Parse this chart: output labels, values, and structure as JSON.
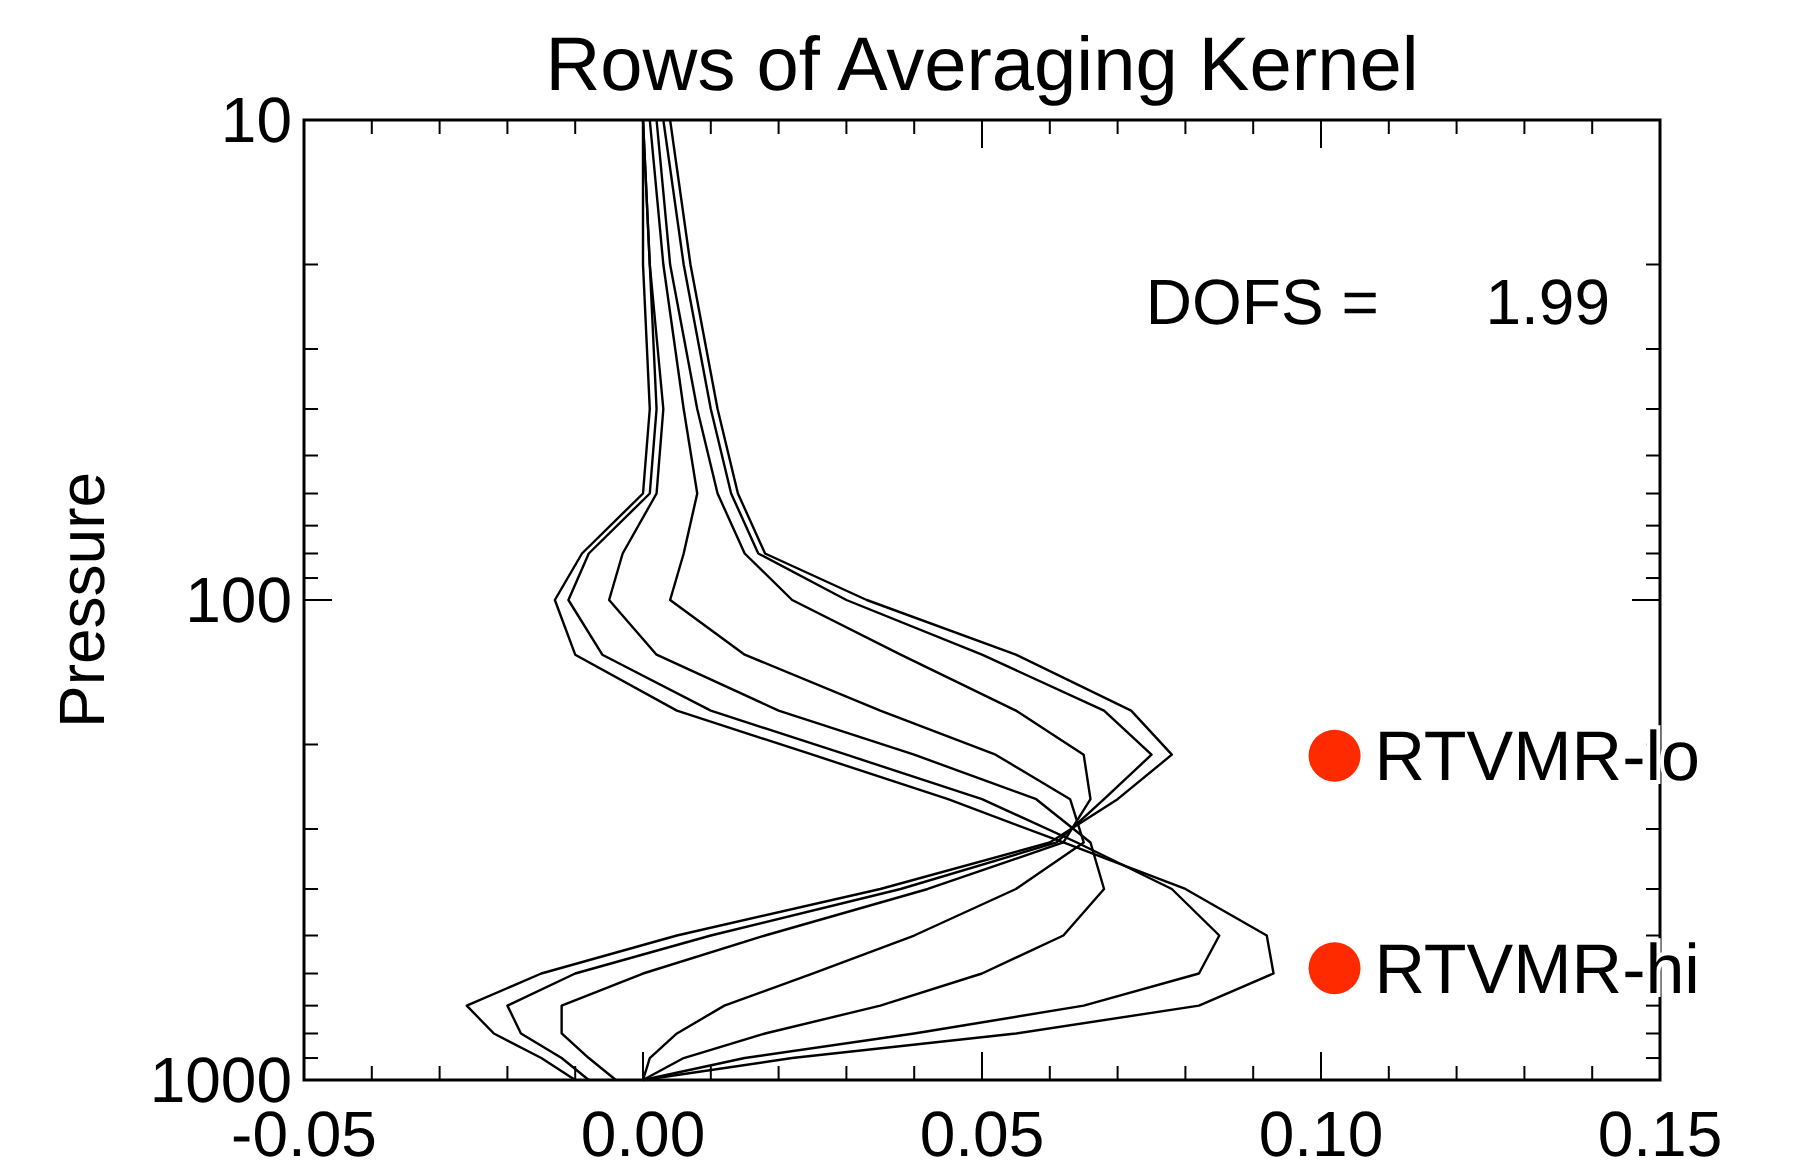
{
  "chart_data": {
    "type": "line",
    "title": "Rows of Averaging Kernel",
    "ylabel": "Pressure",
    "log": "y",
    "grid": false,
    "marker": "none",
    "line_style": "solid",
    "xlim": [
      -0.05,
      0.15
    ],
    "xticks": [
      {
        "value": -0.05,
        "label": "-0.05"
      },
      {
        "value": -0.04,
        "label": null
      },
      {
        "value": -0.03,
        "label": null
      },
      {
        "value": -0.02,
        "label": null
      },
      {
        "value": -0.01,
        "label": null
      },
      {
        "value": 0,
        "label": "0.00"
      },
      {
        "value": 0.01,
        "label": null
      },
      {
        "value": 0.02,
        "label": null
      },
      {
        "value": 0.03,
        "label": null
      },
      {
        "value": 0.04,
        "label": null
      },
      {
        "value": 0.05,
        "label": "0.05"
      },
      {
        "value": 0.06,
        "label": null
      },
      {
        "value": 0.07,
        "label": null
      },
      {
        "value": 0.08,
        "label": null
      },
      {
        "value": 0.09,
        "label": null
      },
      {
        "value": 0.1,
        "label": "0.10"
      },
      {
        "value": 0.11,
        "label": null
      },
      {
        "value": 0.12,
        "label": null
      },
      {
        "value": 0.13,
        "label": null
      },
      {
        "value": 0.14,
        "label": null
      },
      {
        "value": 0.15,
        "label": "0.15"
      }
    ],
    "ylim": [
      1000,
      10
    ],
    "yticks": [
      10,
      {
        "value": 20,
        "label": null
      },
      {
        "value": 30,
        "label": null
      },
      {
        "value": 40,
        "label": null
      },
      {
        "value": 50,
        "label": null
      },
      {
        "value": 60,
        "label": null
      },
      {
        "value": 70,
        "label": null
      },
      {
        "value": 80,
        "label": null
      },
      {
        "value": 90,
        "label": null
      },
      100,
      {
        "value": 200,
        "label": null
      },
      {
        "value": 300,
        "label": null
      },
      {
        "value": 400,
        "label": null
      },
      {
        "value": 500,
        "label": null
      },
      {
        "value": 600,
        "label": null
      },
      {
        "value": 700,
        "label": null
      },
      {
        "value": 800,
        "label": null
      },
      {
        "value": 900,
        "label": null
      },
      1000
    ],
    "annotations": [
      "DOFS =      1.99",
      {
        "text": "RTVMR-lo",
        "x": 0.102,
        "y": 211
      },
      {
        "text": "RTVMR-hi",
        "x": 0.102,
        "y": 585
      }
    ],
    "series": [
      {
        "color": "#000000",
        "x": [
          0.004,
          0.007,
          0.011,
          0.014,
          0.018,
          0.033,
          0.055,
          0.072,
          0.078,
          0.07,
          0.06,
          0.035,
          0.005,
          -0.015,
          -0.026,
          -0.022,
          -0.015,
          -0.01
        ],
        "values": [
          10,
          20,
          40,
          60,
          80,
          100,
          130,
          170,
          210,
          260,
          320,
          400,
          500,
          600,
          700,
          800,
          900,
          1000
        ]
      },
      {
        "color": "#000000",
        "x": [
          0.003,
          0.006,
          0.01,
          0.013,
          0.017,
          0.03,
          0.05,
          0.068,
          0.075,
          0.068,
          0.061,
          0.038,
          0.01,
          -0.01,
          -0.02,
          -0.018,
          -0.012,
          -0.008
        ],
        "values": [
          10,
          20,
          40,
          60,
          80,
          100,
          130,
          170,
          210,
          260,
          320,
          400,
          500,
          600,
          700,
          800,
          900,
          1000
        ]
      },
      {
        "color": "#000000",
        "x": [
          0.002,
          0.004,
          0.008,
          0.011,
          0.015,
          0.022,
          0.038,
          0.055,
          0.065,
          0.066,
          0.062,
          0.042,
          0.018,
          0.0,
          -0.012,
          -0.012,
          -0.008,
          -0.004
        ],
        "values": [
          10,
          20,
          40,
          60,
          80,
          100,
          130,
          170,
          210,
          260,
          320,
          400,
          500,
          600,
          700,
          800,
          900,
          1000
        ]
      },
      {
        "color": "#000000",
        "x": [
          0.001,
          0.003,
          0.006,
          0.008,
          0.006,
          0.004,
          0.015,
          0.035,
          0.052,
          0.063,
          0.065,
          0.055,
          0.04,
          0.025,
          0.012,
          0.005,
          0.001,
          0.0
        ],
        "values": [
          10,
          20,
          40,
          60,
          80,
          100,
          130,
          170,
          210,
          260,
          320,
          400,
          500,
          600,
          700,
          800,
          900,
          1000
        ]
      },
      {
        "color": "#000000",
        "x": [
          0.0,
          0.001,
          0.003,
          0.002,
          -0.003,
          -0.005,
          0.002,
          0.02,
          0.04,
          0.058,
          0.066,
          0.068,
          0.062,
          0.05,
          0.035,
          0.018,
          0.006,
          0.0
        ],
        "values": [
          10,
          20,
          40,
          60,
          80,
          100,
          130,
          170,
          210,
          260,
          320,
          400,
          500,
          600,
          700,
          800,
          900,
          1000
        ]
      },
      {
        "color": "#000000",
        "x": [
          0.0,
          0.001,
          0.002,
          0.001,
          -0.008,
          -0.011,
          -0.006,
          0.01,
          0.03,
          0.05,
          0.064,
          0.078,
          0.085,
          0.082,
          0.065,
          0.04,
          0.015,
          0.0
        ],
        "values": [
          10,
          20,
          40,
          60,
          80,
          100,
          130,
          170,
          210,
          260,
          320,
          400,
          500,
          600,
          700,
          800,
          900,
          1000
        ]
      },
      {
        "color": "#000000",
        "x": [
          0.0,
          0.0,
          0.001,
          0.0,
          -0.009,
          -0.013,
          -0.01,
          0.005,
          0.025,
          0.045,
          0.062,
          0.08,
          0.092,
          0.093,
          0.082,
          0.055,
          0.022,
          0.0
        ],
        "values": [
          10,
          20,
          40,
          60,
          80,
          100,
          130,
          170,
          210,
          260,
          320,
          400,
          500,
          600,
          700,
          800,
          900,
          1000
        ]
      },
      {
        "type": "scatter",
        "marker": "circle",
        "color": "#ff2a00",
        "x": [
          0.102,
          0.102
        ],
        "values": [
          211,
          585
        ]
      }
    ]
  }
}
